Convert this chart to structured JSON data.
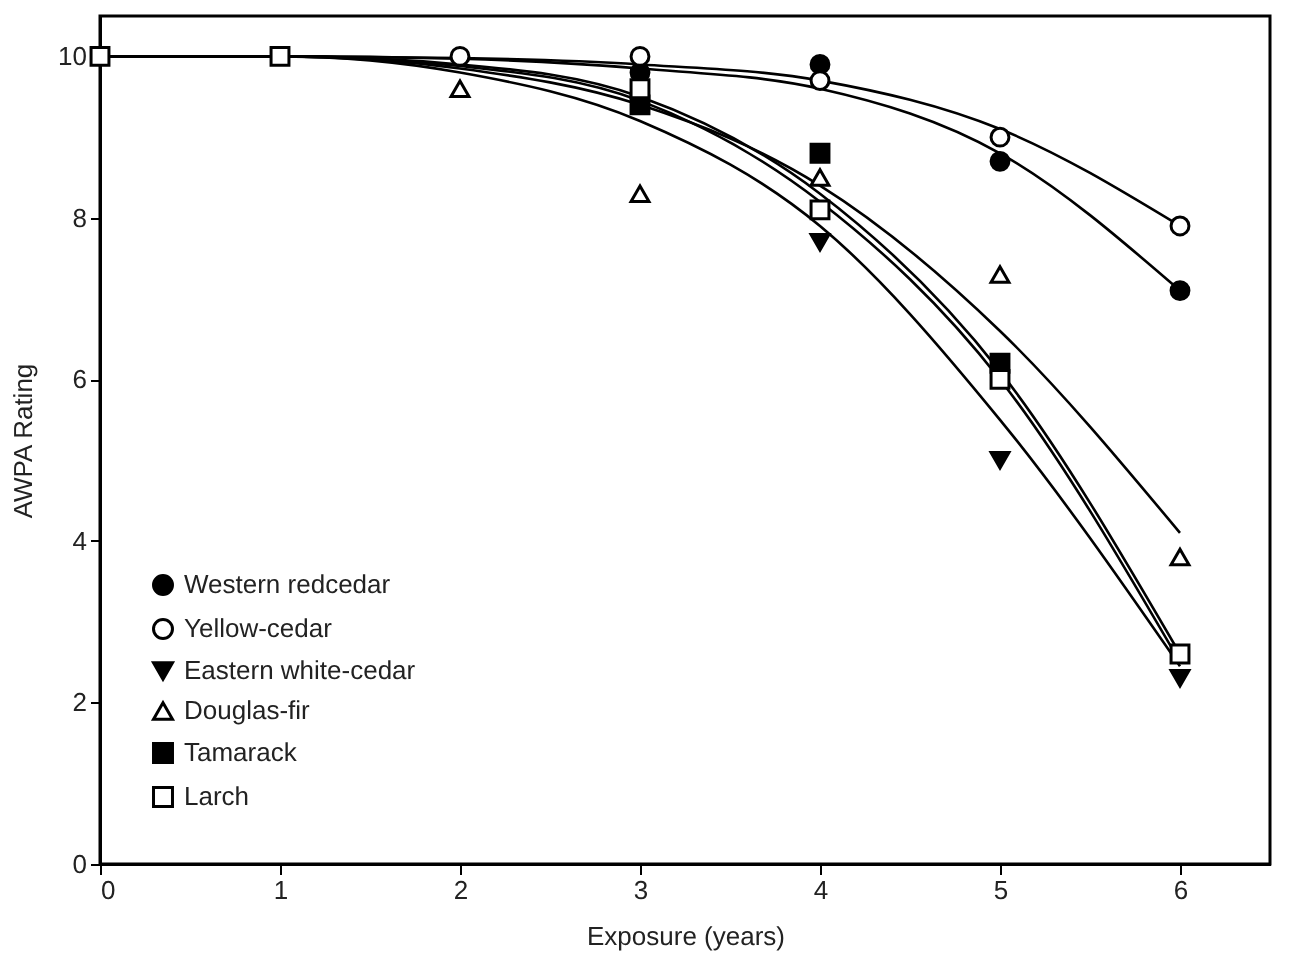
{
  "chart_data": {
    "type": "scatter",
    "xlabel": "Exposure (years)",
    "ylabel": "AWPA Rating",
    "x": [
      0,
      1,
      2,
      3,
      4,
      5,
      6
    ],
    "xlim": [
      0,
      6.5
    ],
    "ylim": [
      0,
      10.5
    ],
    "xticks": [
      0,
      1,
      2,
      3,
      4,
      5,
      6
    ],
    "yticks": [
      0,
      2,
      4,
      6,
      8,
      10
    ],
    "grid": false,
    "legend": "bottom left",
    "series": [
      {
        "name": "Western redcedar",
        "color": "#000000",
        "marker": "circle",
        "values": [
          null,
          null,
          null,
          9.8,
          9.9,
          8.7,
          7.1
        ]
      },
      {
        "name": "Yellow-cedar",
        "color": "#ffffff",
        "marker": "circle",
        "values": [
          null,
          null,
          10,
          10,
          9.7,
          9.0,
          7.9
        ]
      },
      {
        "name": "Eastern white-cedar",
        "color": "#000000",
        "marker": "triangle-down",
        "values": [
          null,
          null,
          null,
          null,
          7.7,
          5.0,
          2.3
        ]
      },
      {
        "name": "Douglas-fir",
        "color": "#ffffff",
        "marker": "triangle",
        "values": [
          null,
          null,
          9.6,
          8.3,
          8.5,
          7.3,
          3.8
        ]
      },
      {
        "name": "Tamarack",
        "color": "#000000",
        "marker": "square",
        "values": [
          null,
          null,
          null,
          9.4,
          8.8,
          6.2,
          null
        ]
      },
      {
        "name": "Larch",
        "color": "#ffffff",
        "marker": "square",
        "values": [
          10,
          10,
          null,
          9.6,
          8.1,
          6.0,
          2.6
        ]
      },
      {
        "type": "line",
        "color": "#000000",
        "marker": "none",
        "line_style": "solid",
        "x": [
          0,
          1,
          2,
          3,
          4,
          5,
          6
        ],
        "values": [
          10,
          10,
          9.97,
          9.85,
          9.6,
          8.8,
          7.1
        ]
      },
      {
        "type": "line",
        "color": "#000000",
        "marker": "none",
        "line_style": "solid",
        "x": [
          0,
          1,
          2,
          3,
          4,
          5,
          6
        ],
        "values": [
          10,
          10,
          9.98,
          9.9,
          9.7,
          9.1,
          7.9
        ]
      },
      {
        "type": "line",
        "color": "#000000",
        "marker": "none",
        "line_style": "solid",
        "x": [
          0,
          1,
          2,
          3,
          4,
          5,
          6
        ],
        "values": [
          10,
          10,
          9.8,
          9.2,
          7.9,
          5.5,
          2.45
        ]
      },
      {
        "type": "line",
        "color": "#000000",
        "marker": "none",
        "line_style": "solid",
        "x": [
          0,
          1,
          2,
          3,
          4,
          5,
          6
        ],
        "values": [
          10,
          10,
          9.85,
          9.4,
          8.4,
          6.6,
          4.1
        ]
      },
      {
        "type": "line",
        "color": "#000000",
        "marker": "none",
        "line_style": "solid",
        "x": [
          0,
          1,
          2,
          3,
          4,
          5,
          6
        ],
        "values": [
          10,
          10,
          9.9,
          9.5,
          8.3,
          6.1,
          2.6
        ]
      },
      {
        "type": "line",
        "color": "#000000",
        "marker": "none",
        "line_style": "solid",
        "x": [
          0,
          1,
          2,
          3,
          4,
          5,
          6
        ],
        "values": [
          10,
          10,
          9.88,
          9.45,
          8.2,
          6.0,
          2.5
        ]
      }
    ]
  }
}
